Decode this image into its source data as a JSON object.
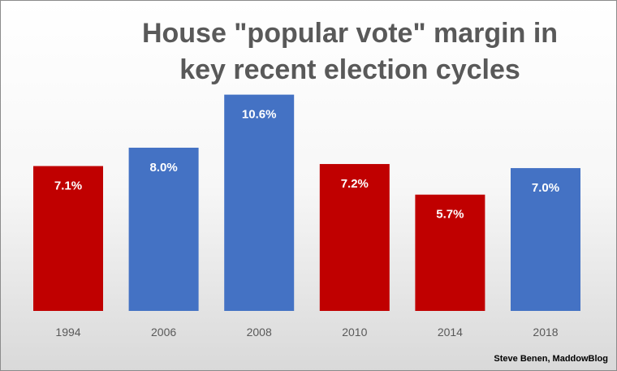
{
  "chart_data": {
    "type": "bar",
    "title": "House \"popular vote\" margin in\nkey recent election cycles",
    "categories": [
      "1994",
      "2006",
      "2008",
      "2010",
      "2014",
      "2018"
    ],
    "values": [
      7.1,
      8.0,
      10.6,
      7.2,
      5.7,
      7.0
    ],
    "data_labels": [
      "7.1%",
      "8.0%",
      "10.6%",
      "7.2%",
      "5.7%",
      "7.0%"
    ],
    "bar_colors": [
      "#c00000",
      "#4472c4",
      "#4472c4",
      "#c00000",
      "#c00000",
      "#4472c4"
    ],
    "xlabel": "",
    "ylabel": "",
    "ylim": [
      0,
      11.3
    ],
    "grid": false,
    "legend": "none"
  },
  "credit": "Steve Benen, MaddowBlog"
}
